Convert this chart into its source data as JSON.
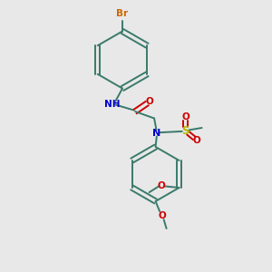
{
  "bg_color": "#e8e8e8",
  "bond_color": "#3a7a6a",
  "n_color": "#0000cc",
  "o_color": "#cc0000",
  "s_color": "#b8b800",
  "br_color": "#cc6600",
  "figsize": [
    3.0,
    3.0
  ],
  "dpi": 100,
  "xlim": [
    0,
    10
  ],
  "ylim": [
    0,
    10
  ]
}
